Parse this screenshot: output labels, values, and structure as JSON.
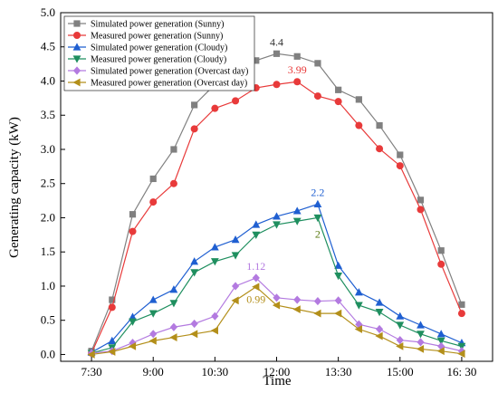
{
  "chart_data": {
    "type": "line",
    "xlabel": "Time",
    "ylabel": "Generating capacity (kW)",
    "x_ticks": [
      "7:30",
      "9:00",
      "10:30",
      "12:00",
      "13:30",
      "15:00",
      "16: 30"
    ],
    "x_tick_hours": [
      7.5,
      9,
      10.5,
      12,
      13.5,
      15,
      16.5
    ],
    "xlim": [
      6.75,
      17.25
    ],
    "ylim": [
      -0.1,
      5.0
    ],
    "y_ticks": [
      "0.0",
      "0.5",
      "1.0",
      "1.5",
      "2.0",
      "2.5",
      "3.0",
      "3.5",
      "4.0",
      "4.5",
      "5.0"
    ],
    "legend_position": "top-left",
    "x_hours": [
      7.5,
      8,
      8.5,
      9,
      9.5,
      10,
      10.5,
      11,
      11.5,
      12,
      12.5,
      13,
      13.5,
      14,
      14.5,
      15,
      15.5,
      16,
      16.5,
      17
    ],
    "series": [
      {
        "name": "Simulated power generation (Sunny)",
        "color": "#808080",
        "marker": "square",
        "values": [
          0.05,
          0.8,
          2.05,
          2.57,
          3.0,
          3.65,
          3.95,
          4.22,
          4.3,
          4.4,
          4.36,
          4.26,
          3.87,
          3.73,
          3.35,
          2.92,
          2.26,
          1.52,
          0.73,
          null
        ]
      },
      {
        "name": "Measured power generation (Sunny)",
        "color": "#e83a3a",
        "marker": "circle",
        "values": [
          0.02,
          0.69,
          1.8,
          2.23,
          2.5,
          3.3,
          3.6,
          3.71,
          3.9,
          3.95,
          3.99,
          3.78,
          3.7,
          3.35,
          3.01,
          2.76,
          2.12,
          1.32,
          0.6,
          null
        ]
      },
      {
        "name": "Simulated power generation (Cloudy)",
        "color": "#1f5fd1",
        "marker": "triangle-up",
        "values": [
          0.03,
          0.2,
          0.55,
          0.8,
          0.95,
          1.36,
          1.57,
          1.68,
          1.9,
          2.02,
          2.1,
          2.2,
          1.3,
          0.91,
          0.76,
          0.56,
          0.43,
          0.3,
          0.17,
          null
        ]
      },
      {
        "name": "Measured power generation (Cloudy)",
        "color": "#1f8f5f",
        "marker": "triangle-down",
        "values": [
          0.02,
          0.1,
          0.48,
          0.6,
          0.75,
          1.2,
          1.36,
          1.45,
          1.75,
          1.9,
          1.95,
          2.0,
          1.15,
          0.72,
          0.62,
          0.43,
          0.3,
          0.2,
          0.12,
          null
        ]
      },
      {
        "name": "Simulated power generation (Overcast day)",
        "color": "#b37ae0",
        "marker": "diamond",
        "values": [
          0.02,
          0.05,
          0.17,
          0.3,
          0.4,
          0.45,
          0.56,
          1.0,
          1.12,
          0.83,
          0.8,
          0.78,
          0.79,
          0.44,
          0.37,
          0.21,
          0.18,
          0.12,
          0.05,
          null
        ]
      },
      {
        "name": "Measured power generation (Overcast day)",
        "color": "#b38f1a",
        "marker": "triangle-left",
        "values": [
          0.0,
          0.04,
          0.12,
          0.2,
          0.25,
          0.3,
          0.35,
          0.79,
          0.99,
          0.72,
          0.66,
          0.6,
          0.6,
          0.37,
          0.27,
          0.12,
          0.08,
          0.05,
          0.01,
          null
        ]
      }
    ],
    "annotations": [
      {
        "text": "4.4",
        "x": 12.0,
        "y": 4.4,
        "color": "#333333"
      },
      {
        "text": "3.99",
        "x": 12.5,
        "y": 3.99,
        "color": "#e83a3a"
      },
      {
        "text": "2.2",
        "x": 13.0,
        "y": 2.2,
        "color": "#1f5fd1"
      },
      {
        "text": "2",
        "x": 13.0,
        "y": 2.0,
        "color": "#5a7a10"
      },
      {
        "text": "1.12",
        "x": 11.5,
        "y": 1.12,
        "color": "#b37ae0"
      },
      {
        "text": "0.99",
        "x": 11.5,
        "y": 0.99,
        "color": "#b38f1a"
      }
    ]
  }
}
